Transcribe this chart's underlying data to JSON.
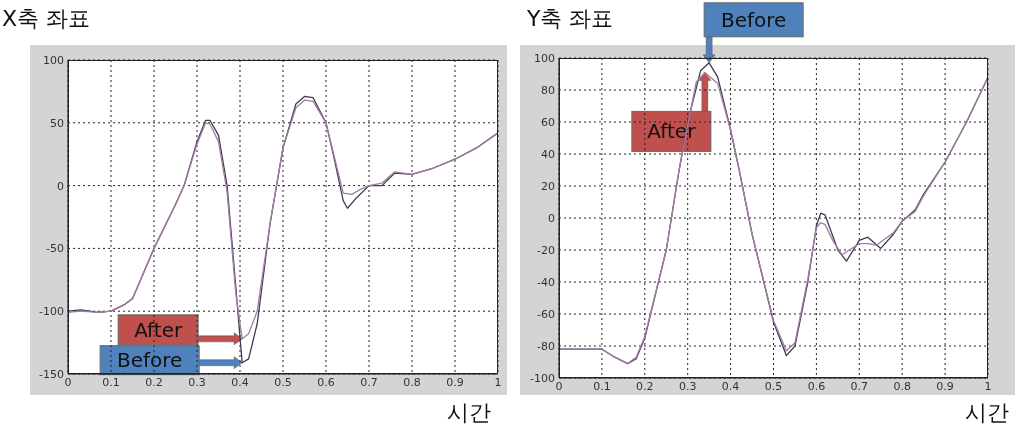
{
  "chart_data": [
    {
      "type": "line",
      "title": "X축 좌표",
      "xlabel": "시간",
      "xlim": [
        0,
        1
      ],
      "xticks": [
        0,
        0.1,
        0.2,
        0.3,
        0.4,
        0.5,
        0.6,
        0.7,
        0.8,
        0.9,
        1
      ],
      "ylim": [
        -150,
        100
      ],
      "yticks": [
        -150,
        -100,
        -50,
        0,
        50,
        100
      ],
      "grid": true,
      "line_style": "solid",
      "annotations": [
        {
          "text": "After",
          "x": 0.405,
          "y": -122
        },
        {
          "text": "Before",
          "x": 0.405,
          "y": -141
        }
      ],
      "series": [
        {
          "color": "#3c3c55",
          "x": [
            0,
            0.03,
            0.07,
            0.1,
            0.13,
            0.15,
            0.2,
            0.25,
            0.27,
            0.3,
            0.32,
            0.33,
            0.35,
            0.37,
            0.39,
            0.405,
            0.42,
            0.44,
            0.47,
            0.5,
            0.53,
            0.55,
            0.57,
            0.6,
            0.62,
            0.64,
            0.65,
            0.67,
            0.7,
            0.73,
            0.76,
            0.8,
            0.85,
            0.9,
            0.95,
            1
          ],
          "values": [
            -100,
            -99,
            -101,
            -100,
            -95,
            -90,
            -50,
            -15,
            0,
            35,
            52,
            52,
            40,
            0,
            -80,
            -141,
            -138,
            -110,
            -30,
            30,
            65,
            71,
            70,
            50,
            20,
            -12,
            -18,
            -10,
            0,
            0,
            10,
            9,
            14,
            21,
            30,
            42
          ]
        },
        {
          "color": "#a57ca2",
          "x": [
            0,
            0.03,
            0.07,
            0.1,
            0.13,
            0.15,
            0.2,
            0.25,
            0.27,
            0.3,
            0.32,
            0.33,
            0.35,
            0.37,
            0.39,
            0.405,
            0.42,
            0.44,
            0.47,
            0.5,
            0.53,
            0.55,
            0.57,
            0.6,
            0.62,
            0.64,
            0.66,
            0.68,
            0.7,
            0.73,
            0.76,
            0.8,
            0.85,
            0.9,
            0.95,
            1
          ],
          "values": [
            -101,
            -100,
            -101,
            -100,
            -95,
            -90,
            -50,
            -15,
            0,
            33,
            50,
            49,
            35,
            -5,
            -85,
            -122,
            -118,
            -100,
            -30,
            30,
            62,
            68,
            67,
            50,
            22,
            -6,
            -7,
            -3,
            0,
            2,
            11,
            9,
            14,
            21,
            30,
            42
          ]
        }
      ]
    },
    {
      "type": "line",
      "title": "Y축 좌표",
      "xlabel": "시간",
      "xlim": [
        0,
        1
      ],
      "xticks": [
        0,
        0.1,
        0.2,
        0.3,
        0.4,
        0.5,
        0.6,
        0.7,
        0.8,
        0.9,
        1
      ],
      "ylim": [
        -100,
        100
      ],
      "yticks": [
        -100,
        -80,
        -60,
        -40,
        -20,
        0,
        20,
        40,
        60,
        80,
        100
      ],
      "grid": true,
      "line_style": "solid",
      "annotations": [
        {
          "text": "Before",
          "x": 0.35,
          "y": 97
        },
        {
          "text": "After",
          "x": 0.34,
          "y": 91
        }
      ],
      "series": [
        {
          "color": "#3c3c55",
          "x": [
            0,
            0.1,
            0.13,
            0.16,
            0.18,
            0.2,
            0.25,
            0.28,
            0.3,
            0.33,
            0.35,
            0.37,
            0.4,
            0.42,
            0.45,
            0.5,
            0.53,
            0.55,
            0.58,
            0.6,
            0.61,
            0.62,
            0.65,
            0.67,
            0.7,
            0.72,
            0.75,
            0.78,
            0.8,
            0.83,
            0.85,
            0.9,
            0.95,
            1
          ],
          "values": [
            -82,
            -82,
            -87,
            -91,
            -88,
            -75,
            -20,
            30,
            60,
            92,
            97,
            88,
            55,
            30,
            -10,
            -65,
            -86,
            -80,
            -40,
            -5,
            3,
            2,
            -20,
            -27,
            -14,
            -12,
            -19,
            -10,
            -2,
            5,
            15,
            35,
            60,
            88
          ]
        },
        {
          "color": "#a57ca2",
          "x": [
            0,
            0.1,
            0.13,
            0.16,
            0.18,
            0.2,
            0.25,
            0.28,
            0.3,
            0.32,
            0.34,
            0.37,
            0.4,
            0.42,
            0.45,
            0.5,
            0.53,
            0.55,
            0.58,
            0.6,
            0.61,
            0.62,
            0.64,
            0.66,
            0.7,
            0.72,
            0.74,
            0.78,
            0.8,
            0.83,
            0.85,
            0.9,
            0.95,
            1
          ],
          "values": [
            -82,
            -82,
            -87,
            -91,
            -87,
            -74,
            -20,
            30,
            58,
            85,
            91,
            84,
            55,
            30,
            -10,
            -64,
            -83,
            -78,
            -38,
            -6,
            -3,
            -4,
            -15,
            -23,
            -16,
            -16,
            -17,
            -9,
            -2,
            4,
            14,
            35,
            60,
            88
          ]
        }
      ]
    }
  ]
}
